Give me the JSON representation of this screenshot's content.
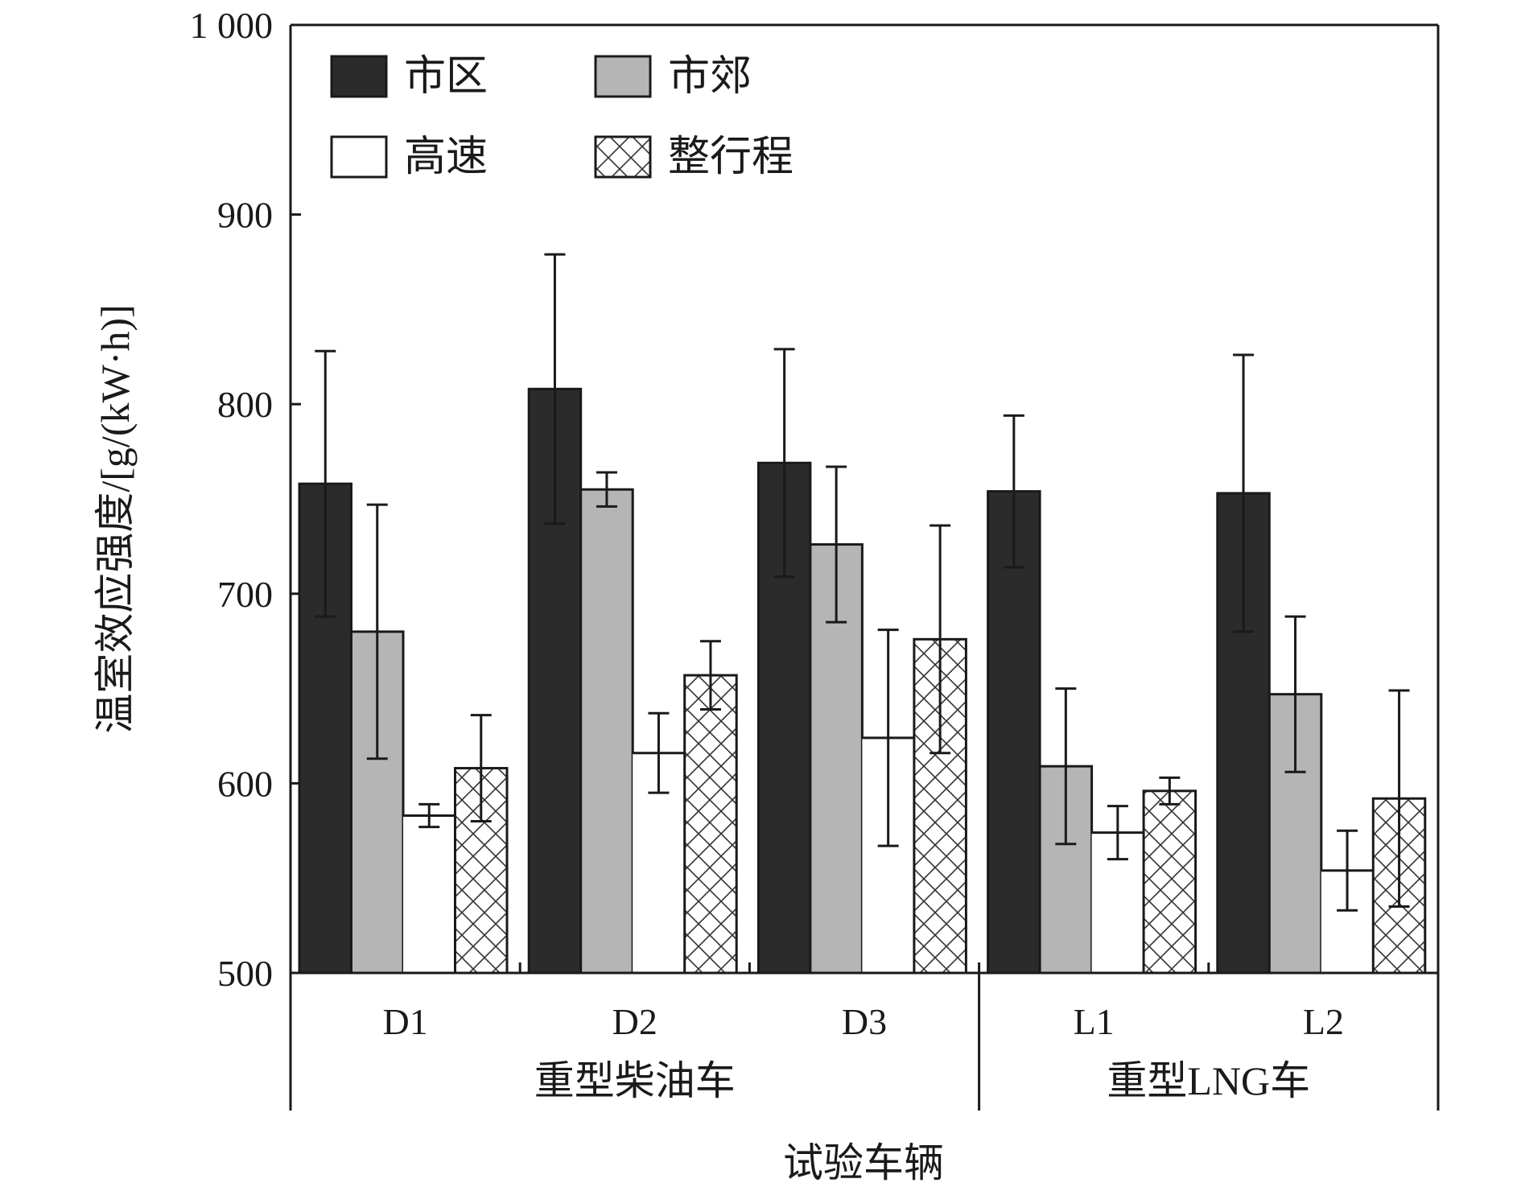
{
  "chart_data": {
    "type": "bar",
    "title": "",
    "xlabel": "试验车辆",
    "ylabel": "温室效应强度/[g/(kW·h)]",
    "ylim": [
      500,
      1000
    ],
    "yticks": [
      500,
      600,
      700,
      800,
      900,
      1000
    ],
    "ytick_labels": [
      "500",
      "600",
      "700",
      "800",
      "900",
      "1 000"
    ],
    "categories": [
      "D1",
      "D2",
      "D3",
      "L1",
      "L2"
    ],
    "groups": [
      {
        "label": "重型柴油车",
        "categories": [
          "D1",
          "D2",
          "D3"
        ]
      },
      {
        "label": "重型LNG车",
        "categories": [
          "L1",
          "L2"
        ]
      }
    ],
    "legend_position": "top-left",
    "grid": false,
    "series": [
      {
        "name": "市区",
        "fill": "#2b2b2b",
        "pattern": "solid",
        "values": [
          758,
          808,
          769,
          754,
          753
        ],
        "errors": [
          70,
          71,
          60,
          40,
          73
        ]
      },
      {
        "name": "市郊",
        "fill": "#b5b5b5",
        "pattern": "solid",
        "values": [
          680,
          755,
          726,
          609,
          647
        ],
        "errors": [
          67,
          9,
          41,
          41,
          41
        ]
      },
      {
        "name": "高速",
        "fill": "#ffffff",
        "pattern": "none",
        "values": [
          583,
          616,
          624,
          574,
          554
        ],
        "errors": [
          6,
          21,
          57,
          14,
          21
        ]
      },
      {
        "name": "整行程",
        "fill": "#ffffff",
        "pattern": "crosshatch",
        "values": [
          608,
          657,
          676,
          596,
          592
        ],
        "errors": [
          28,
          18,
          60,
          7,
          57
        ]
      }
    ]
  }
}
